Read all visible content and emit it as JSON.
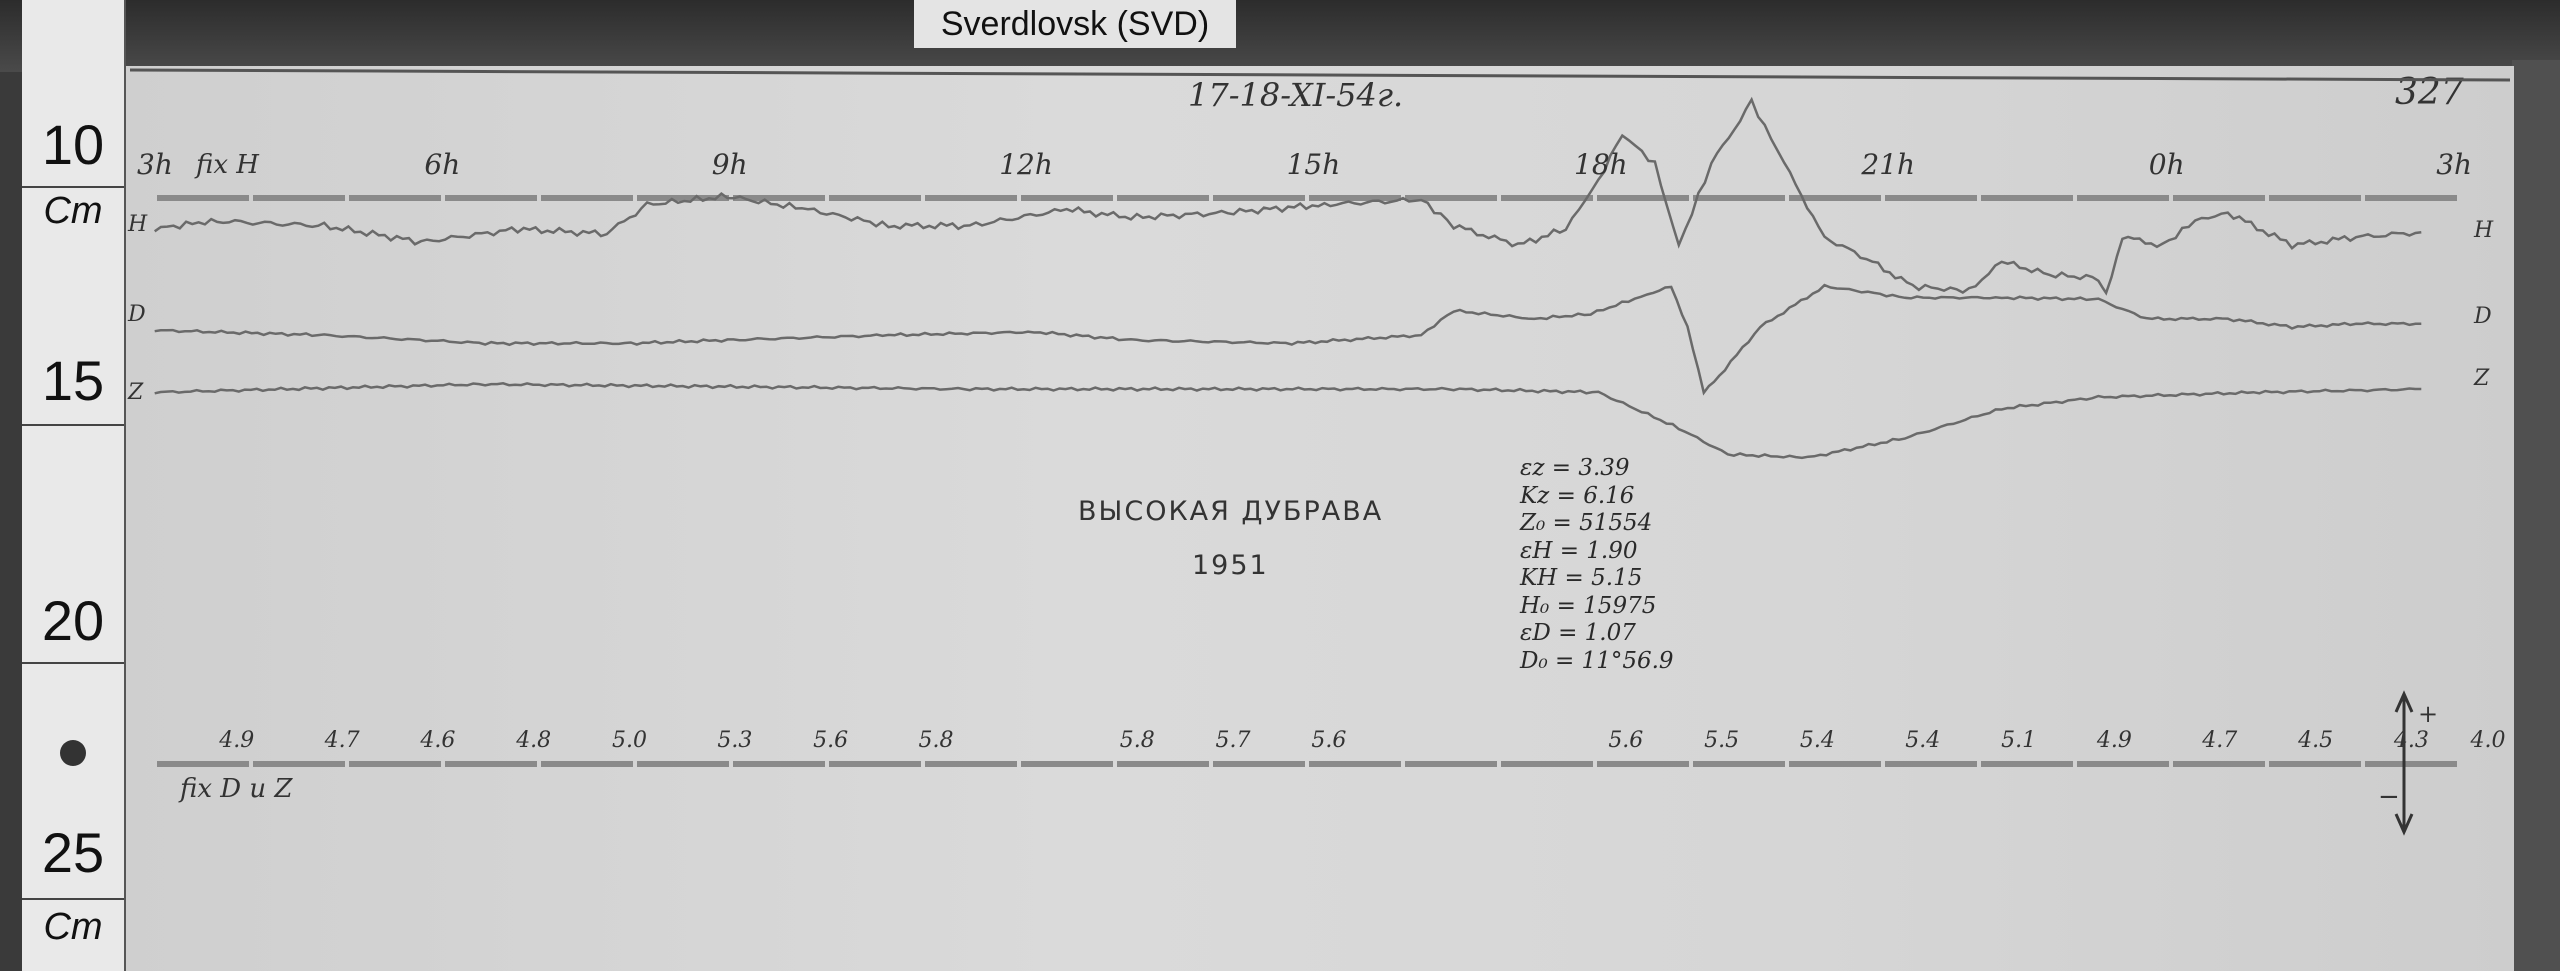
{
  "station_label": "Sverdlovsk (SVD)",
  "ruler": {
    "labels": [
      "10",
      "Cm",
      "15",
      "20",
      "25",
      "Cm"
    ]
  },
  "sheet_number": "327",
  "date": "17-18-XI-54г.",
  "title": "ВЫСОКАЯ ДУБРАВА",
  "year": "1951",
  "fix_h_label": "fix H",
  "fix_dz_label": "fix D u Z",
  "trace_labels": {
    "H": "H",
    "D": "D",
    "Z": "Z"
  },
  "constants": [
    "εz = 3.39",
    "Kz = 6.16",
    "Z₀ = 51554",
    "εH = 1.90",
    "KH = 5.15",
    "H₀ = 15975",
    "εD = 1.07",
    "D₀ = 11°56.9"
  ],
  "arrow_labels": {
    "plus": "+",
    "minus": "−"
  },
  "colors": {
    "paper": "#d6d6d6",
    "trace": "#6a6a6a",
    "baseline": "#8a8a8a"
  },
  "chart_data": {
    "type": "line",
    "title": "",
    "xlabel": "",
    "ylabel": "",
    "grid": false,
    "hour_ticks": [
      "3h",
      "6h",
      "9h",
      "12h",
      "15h",
      "18h",
      "21h",
      "0h",
      "3h"
    ],
    "hour_tick_values": [
      3,
      6,
      9,
      12,
      15,
      18,
      21,
      24,
      27
    ],
    "baseline_marks": [
      "4.9",
      "4.7",
      "4.6",
      "4.8",
      "5.0",
      "5.3",
      "5.6",
      "5.8",
      "5.8",
      "5.7",
      "5.6",
      "5.6",
      "5.5",
      "5.4",
      "5.4",
      "5.1",
      "4.9",
      "4.7",
      "4.5",
      "4.3",
      "4.0"
    ],
    "baseline_mark_hours": [
      3.9,
      5.0,
      6.0,
      7.0,
      8.0,
      9.1,
      10.1,
      11.2,
      13.3,
      14.3,
      15.3,
      18.4,
      19.4,
      20.4,
      21.5,
      22.5,
      23.5,
      24.6,
      25.6,
      26.6,
      27.4
    ],
    "series": [
      {
        "name": "H",
        "points": [
          [
            3.08,
            -19
          ],
          [
            3.67,
            -14
          ],
          [
            4.85,
            -17
          ],
          [
            5.86,
            -27
          ],
          [
            6.87,
            -19
          ],
          [
            7.8,
            -22
          ],
          [
            8.22,
            -4
          ],
          [
            9.06,
            1
          ],
          [
            9.9,
            -7
          ],
          [
            10.74,
            -17
          ],
          [
            11.59,
            -17
          ],
          [
            12.6,
            -7
          ],
          [
            13.27,
            -12
          ],
          [
            14.28,
            -9
          ],
          [
            15.29,
            -4
          ],
          [
            16.3,
            -1
          ],
          [
            16.64,
            -17
          ],
          [
            17.31,
            -29
          ],
          [
            17.81,
            -19
          ],
          [
            18.15,
            11
          ],
          [
            18.4,
            39
          ],
          [
            18.74,
            21
          ],
          [
            18.99,
            -29
          ],
          [
            19.33,
            21
          ],
          [
            19.75,
            59
          ],
          [
            20.09,
            21
          ],
          [
            20.51,
            -24
          ],
          [
            21.01,
            -39
          ],
          [
            21.43,
            -54
          ],
          [
            22.02,
            -57
          ],
          [
            22.36,
            -39
          ],
          [
            22.86,
            -47
          ],
          [
            23.37,
            -49
          ],
          [
            23.45,
            -59
          ],
          [
            23.62,
            -24
          ],
          [
            24.04,
            -29
          ],
          [
            24.38,
            -14
          ],
          [
            24.72,
            -9
          ],
          [
            25.39,
            -29
          ],
          [
            26.06,
            -24
          ],
          [
            26.74,
            -21
          ]
        ]
      },
      {
        "name": "D",
        "points": [
          [
            3.08,
            -81
          ],
          [
            4.85,
            -84
          ],
          [
            6.53,
            -89
          ],
          [
            8.05,
            -89
          ],
          [
            9.06,
            -87
          ],
          [
            10.74,
            -84
          ],
          [
            12.26,
            -82
          ],
          [
            13.27,
            -87
          ],
          [
            14.95,
            -89
          ],
          [
            16.3,
            -84
          ],
          [
            16.64,
            -69
          ],
          [
            17.48,
            -74
          ],
          [
            18.07,
            -71
          ],
          [
            18.66,
            -59
          ],
          [
            18.91,
            -54
          ],
          [
            19.08,
            -79
          ],
          [
            19.25,
            -119
          ],
          [
            19.41,
            -109
          ],
          [
            19.84,
            -79
          ],
          [
            20.51,
            -54
          ],
          [
            21.35,
            -61
          ],
          [
            22.36,
            -61
          ],
          [
            23.37,
            -62
          ],
          [
            23.87,
            -74
          ],
          [
            24.72,
            -74
          ],
          [
            25.39,
            -79
          ],
          [
            26.06,
            -77
          ],
          [
            26.74,
            -77
          ]
        ]
      },
      {
        "name": "Z",
        "points": [
          [
            3.08,
            -119
          ],
          [
            6.53,
            -114
          ],
          [
            11.59,
            -117
          ],
          [
            16.64,
            -117
          ],
          [
            18.15,
            -119
          ],
          [
            18.99,
            -141
          ],
          [
            19.5,
            -157
          ],
          [
            20.34,
            -159
          ],
          [
            21.35,
            -147
          ],
          [
            22.36,
            -129
          ],
          [
            23.37,
            -122
          ],
          [
            25.05,
            -119
          ],
          [
            26.74,
            -117
          ]
        ]
      }
    ]
  }
}
